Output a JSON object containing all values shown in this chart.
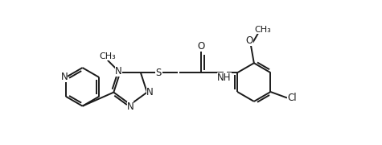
{
  "bg_color": "#ffffff",
  "line_color": "#1a1a1a",
  "line_width": 1.4,
  "font_size": 8.5,
  "fig_width": 4.75,
  "fig_height": 1.8,
  "dpi": 100,
  "xlim": [
    0.0,
    9.5
  ],
  "ylim": [
    -1.5,
    3.0
  ]
}
